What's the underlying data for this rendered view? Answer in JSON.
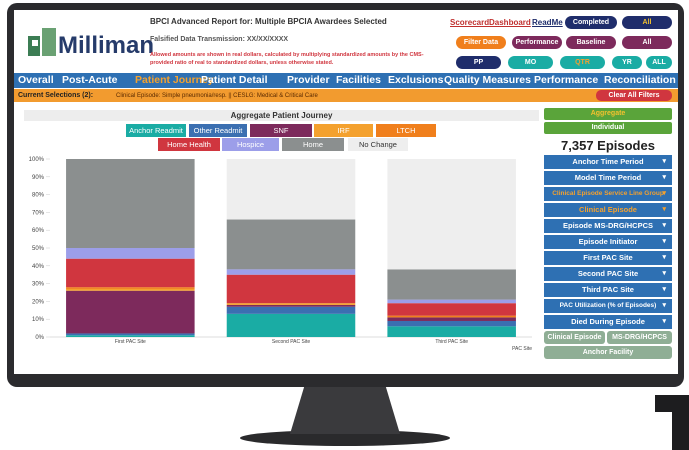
{
  "header": {
    "logo": "Milliman",
    "title": "BPCI Advanced Report for: Multiple BPCIA Awardees Selected",
    "transmission": "Falsified Data Transmission: XX/XX/XXXX",
    "note_line1": "Allowed amounts are shown in real dollars, calculated by multiplying standardized amounts by the CMS-",
    "note_line2": "provided ratio of real to standardized dollars, unless otherwise stated."
  },
  "links": [
    "Scorecard",
    "Dashboard",
    "ReadMe"
  ],
  "button_rows": [
    [
      "Completed",
      "All"
    ],
    [
      "Filter Data",
      "Performance",
      "Baseline",
      "All"
    ],
    [
      "PP",
      "MO",
      "QTR",
      "YR",
      "ALL"
    ]
  ],
  "nav": [
    "Overall",
    "Post-Acute",
    "Patient Journey",
    "Patient Detail",
    "Provider",
    "Facilities",
    "Exclusions",
    "Quality Measures",
    "Performance",
    "Reconciliation"
  ],
  "selections": {
    "label": "Current Selections (2):",
    "text": "Clinical Episode: Simple pneumonia/resp. || CESLG: Medical & Critical Care",
    "clear": "Clear All Filters"
  },
  "chart_data": {
    "type": "stacked-bar",
    "title": "Aggregate Patient Journey",
    "x_label": "PAC Site",
    "categories": [
      "First PAC Site",
      "Second PAC Site",
      "Third PAC Site"
    ],
    "series": [
      {
        "name": "Anchor Readmit",
        "color": "#1aaca4",
        "values": [
          1,
          13,
          6
        ]
      },
      {
        "name": "Other Readmit",
        "color": "#3b6fb1",
        "values": [
          1,
          4,
          3
        ]
      },
      {
        "name": "SNF",
        "color": "#7d2a5c",
        "values": [
          24,
          1,
          2
        ]
      },
      {
        "name": "IRF",
        "color": "#f4a12e",
        "values": [
          1,
          1,
          0
        ]
      },
      {
        "name": "LTCH",
        "color": "#f07f1c",
        "values": [
          1,
          0,
          1
        ]
      },
      {
        "name": "Home Health",
        "color": "#d0363f",
        "values": [
          16,
          16,
          7
        ]
      },
      {
        "name": "Hospice",
        "color": "#9c9ee9",
        "values": [
          6,
          3,
          2
        ]
      },
      {
        "name": "Home",
        "color": "#8b8f8f",
        "values": [
          50,
          28,
          17
        ]
      },
      {
        "name": "No Change",
        "color": "#eeeeee",
        "values": [
          0,
          34,
          62
        ]
      }
    ],
    "ylim": [
      0,
      100
    ],
    "yticks": [
      {
        "value": 0,
        "label": "0%"
      },
      {
        "value": 10,
        "label": "10%"
      },
      {
        "value": 20,
        "label": "20%"
      },
      {
        "value": 30,
        "label": "30%"
      },
      {
        "value": 40,
        "label": "40%"
      },
      {
        "value": 50,
        "label": "50%"
      },
      {
        "value": 60,
        "label": "60%"
      },
      {
        "value": 70,
        "label": "70%"
      },
      {
        "value": 80,
        "label": "80%"
      },
      {
        "value": 90,
        "label": "90%"
      },
      {
        "value": 100,
        "label": "100%"
      }
    ],
    "grid": false
  },
  "sidebar": {
    "toggles": [
      "Aggregate",
      "Individual"
    ],
    "episodes": "7,357 Episodes",
    "filters": [
      "Anchor Time Period",
      "Model Time Period",
      "Clinical Episode Service Line Group",
      "Clinical Episode",
      "Episode MS-DRG/HCPCS",
      "Episode Initiator",
      "First PAC Site",
      "Second PAC Site",
      "Third PAC Site",
      "PAC Utilization (% of Episodes)",
      "Died During Episode"
    ],
    "bottom": [
      "Clinical Episode",
      "MS-DRG/HCPCS",
      "Anchor Facility"
    ]
  }
}
